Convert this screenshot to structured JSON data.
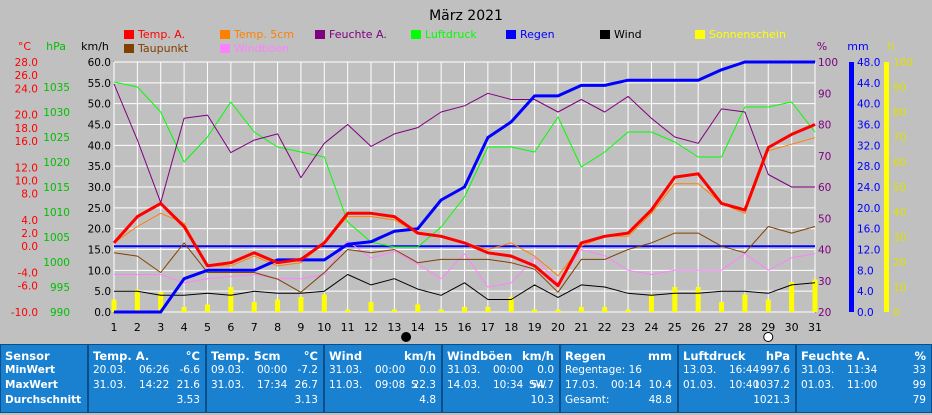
{
  "chart_data": {
    "type": "line",
    "title": "März 2021",
    "x": [
      1,
      2,
      3,
      4,
      5,
      6,
      7,
      8,
      9,
      10,
      11,
      12,
      13,
      14,
      15,
      16,
      17,
      18,
      19,
      20,
      21,
      22,
      23,
      24,
      25,
      26,
      27,
      28,
      29,
      30,
      31
    ],
    "axes": {
      "temp_c": {
        "label": "°C",
        "ticks": [
          "28.0",
          "26.0",
          "24.0",
          "20.0",
          "18.0",
          "16.0",
          "12.0",
          "10.0",
          "8.0",
          "4.0",
          "2.0",
          "0.0",
          "-4.0",
          "-6.0",
          "-10.0"
        ],
        "ylim": [
          -10,
          28
        ],
        "color": "#ff0000"
      },
      "hpa": {
        "label": "hPa",
        "ticks": [
          "1035",
          "1030",
          "1025",
          "1020",
          "1015",
          "1010",
          "1005",
          "1000",
          "995",
          "990"
        ],
        "ylim": [
          990,
          1040
        ],
        "color": "#00c000"
      },
      "kmh": {
        "label": "km/h",
        "ticks": [
          "60.0",
          "55.0",
          "50.0",
          "45.0",
          "40.0",
          "35.0",
          "30.0",
          "25.0",
          "20.0",
          "15.0",
          "10.0",
          "5.0",
          "0.0"
        ],
        "ylim": [
          0,
          60
        ],
        "color": "#000000"
      },
      "percent": {
        "label": "%",
        "ticks": [
          "100",
          "90",
          "80",
          "70",
          "60",
          "50",
          "40",
          "30",
          "20"
        ],
        "ylim": [
          20,
          100
        ],
        "color": "#800080"
      },
      "mm": {
        "label": "mm",
        "ticks": [
          "48.0",
          "44.0",
          "40.0",
          "36.0",
          "32.0",
          "28.0",
          "24.0",
          "20.0",
          "16.0",
          "12.0",
          "8.0",
          "4.0",
          "0.0"
        ],
        "ylim": [
          0,
          48
        ],
        "color": "#0000ff"
      },
      "h": {
        "label": "h",
        "ticks": [
          "100",
          "90",
          "80",
          "70",
          "60",
          "50",
          "40",
          "30",
          "20",
          "10",
          "0"
        ],
        "ylim": [
          0,
          100
        ],
        "color": "#cccc00"
      }
    },
    "legend": [
      {
        "name": "Temp. A.",
        "color": "#ff0000"
      },
      {
        "name": "Temp. 5cm",
        "color": "#ff8000"
      },
      {
        "name": "Feuchte A.",
        "color": "#800080"
      },
      {
        "name": "Luftdruck",
        "color": "#00ff00"
      },
      {
        "name": "Regen",
        "color": "#0000ff"
      },
      {
        "name": "Wind",
        "color": "#000000"
      },
      {
        "name": "Sonnenschein",
        "color": "#ffff00"
      },
      {
        "name": "Taupunkt",
        "color": "#804000"
      },
      {
        "name": "Windböen",
        "color": "#ff80ff"
      }
    ],
    "series": [
      {
        "name": "Temp. A.",
        "axis": "temp_c",
        "color": "#ff0000",
        "width": 3,
        "values": [
          0.5,
          4.5,
          6.5,
          3.0,
          -3.0,
          -2.5,
          -1.0,
          -2.5,
          -2.0,
          0.5,
          5.0,
          5.0,
          4.5,
          2.0,
          1.5,
          0.5,
          -1.0,
          -1.5,
          -3.0,
          -6.0,
          0.5,
          1.5,
          2.0,
          5.5,
          10.5,
          11.0,
          6.5,
          5.5,
          15.0,
          17.0,
          18.5
        ]
      },
      {
        "name": "Temp. 5cm",
        "axis": "temp_c",
        "color": "#ff8000",
        "width": 1,
        "values": [
          0.5,
          3.0,
          5.0,
          3.5,
          -3.0,
          -3.0,
          -1.5,
          -3.0,
          -2.5,
          0.5,
          4.5,
          4.5,
          4.0,
          2.0,
          1.5,
          0.5,
          -0.5,
          0.5,
          -1.5,
          -4.5,
          0.0,
          1.5,
          1.5,
          5.0,
          9.5,
          9.5,
          6.5,
          5.0,
          14.5,
          15.5,
          16.5
        ]
      },
      {
        "name": "Taupunkt",
        "axis": "temp_c",
        "color": "#804000",
        "width": 1,
        "values": [
          -1.0,
          -1.5,
          -4.0,
          0.5,
          -4.0,
          -4.0,
          -4.0,
          -5.0,
          -7.0,
          -4.0,
          -0.5,
          -1.0,
          -0.5,
          -2.5,
          -2.0,
          -2.0,
          -2.0,
          -2.5,
          -3.5,
          -7.0,
          -2.0,
          -2.0,
          -0.5,
          0.5,
          2.0,
          2.0,
          0.0,
          -1.0,
          3.0,
          2.0,
          3.0
        ]
      },
      {
        "name": "Feuchte A.",
        "axis": "percent",
        "color": "#800080",
        "width": 1,
        "values": [
          93,
          75,
          55,
          82,
          83,
          71,
          75,
          77,
          63,
          74,
          80,
          73,
          77,
          79,
          84,
          86,
          90,
          88,
          88,
          84,
          88,
          84,
          89,
          82,
          76,
          74,
          85,
          84,
          64,
          60,
          60
        ]
      },
      {
        "name": "Luftdruck",
        "axis": "hpa",
        "color": "#00ff00",
        "width": 1,
        "values": [
          1036,
          1035,
          1030,
          1020,
          1025,
          1032,
          1026,
          1023,
          1022,
          1021,
          1008,
          1004,
          1003,
          1003,
          1007,
          1013,
          1023,
          1023,
          1022,
          1029,
          1019,
          1022,
          1026,
          1026,
          1024,
          1021,
          1021,
          1031,
          1031,
          1032,
          1026
        ]
      },
      {
        "name": "Regen",
        "axis": "mm",
        "color": "#0000ff",
        "width": 3,
        "values": [
          0,
          0,
          0,
          6.4,
          8.0,
          8.0,
          8.0,
          10.0,
          10.0,
          10.0,
          13.0,
          13.5,
          15.5,
          16.0,
          21.5,
          24.0,
          33.5,
          36.5,
          41.5,
          41.5,
          43.5,
          43.5,
          44.5,
          44.5,
          44.5,
          44.5,
          46.5,
          48.0,
          48.0,
          48.0,
          48.0
        ]
      },
      {
        "name": "Wind",
        "axis": "kmh",
        "color": "#000000",
        "width": 1,
        "values": [
          5.0,
          5.0,
          4.0,
          4.0,
          4.5,
          4.0,
          5.0,
          4.5,
          4.5,
          5.0,
          9.0,
          6.5,
          8.0,
          5.5,
          4.0,
          7.0,
          3.0,
          3.0,
          6.5,
          3.5,
          6.5,
          6.0,
          4.5,
          4.0,
          4.5,
          4.5,
          5.0,
          5.0,
          4.5,
          6.5,
          7.0
        ]
      },
      {
        "name": "Windböen",
        "axis": "kmh",
        "color": "#ff80ff",
        "width": 1,
        "values": [
          9.0,
          9.0,
          9.0,
          7.0,
          8.0,
          8.5,
          9.0,
          8.0,
          8.0,
          9.0,
          17.0,
          13.0,
          14.5,
          11.5,
          8.0,
          14.0,
          6.0,
          7.0,
          13.0,
          7.0,
          15.0,
          13.5,
          10.0,
          9.0,
          10.0,
          10.0,
          10.0,
          14.0,
          10.0,
          13.0,
          14.0
        ]
      },
      {
        "name": "Sonnenschein",
        "axis": "h",
        "type": "bar",
        "color": "#ffff00",
        "values": [
          5,
          9,
          8,
          2,
          3,
          10,
          4,
          5,
          6,
          7,
          1,
          4,
          1,
          3,
          1,
          2,
          2,
          6,
          1,
          1,
          2,
          2,
          1,
          7,
          10,
          10,
          4,
          7,
          5,
          12,
          13
        ]
      }
    ],
    "reference_line": {
      "axis": "temp_c",
      "value": 0,
      "color": "#0000ff"
    },
    "x_markers": [
      {
        "x": 13.5,
        "kind": "new-moon"
      },
      {
        "x": 29,
        "kind": "full-moon"
      }
    ]
  },
  "table": [
    {
      "title": "Sensor",
      "unit": "",
      "rows": [
        "MinWert",
        "MaxWert",
        "Durchschnitt"
      ]
    },
    {
      "title": "Temp. A.",
      "unit": "°C",
      "rows": [
        {
          "d": "20.03.",
          "t": "06:26",
          "v": "-6.6"
        },
        {
          "d": "31.03.",
          "t": "14:22",
          "v": "21.6"
        },
        {
          "v": "3.53"
        }
      ]
    },
    {
      "title": "Temp. 5cm",
      "unit": "°C",
      "rows": [
        {
          "d": "09.03.",
          "t": "00:00",
          "v": "-7.2"
        },
        {
          "d": "31.03.",
          "t": "17:34",
          "v": "26.7"
        },
        {
          "v": "3.13"
        }
      ]
    },
    {
      "title": "Wind",
      "unit": "km/h",
      "rows": [
        {
          "d": "31.03.",
          "t": "00:00",
          "v": "0.0"
        },
        {
          "d": "11.03.",
          "t": "09:08",
          "x": "S",
          "v": "22.3"
        },
        {
          "v": "4.8"
        }
      ]
    },
    {
      "title": "Windböen",
      "unit": "km/h",
      "rows": [
        {
          "d": "31.03.",
          "t": "00:00",
          "v": "0.0"
        },
        {
          "d": "14.03.",
          "t": "10:34",
          "x": "SW",
          "v": "54.7"
        },
        {
          "v": "10.3"
        }
      ]
    },
    {
      "title": "Regen",
      "unit": "mm",
      "rows": [
        {
          "d": "Regentage: 16",
          "t": "",
          "v": ""
        },
        {
          "d": "17.03.",
          "t": "00:14",
          "v": "10.4"
        },
        {
          "d": "Gesamt:",
          "t": "",
          "v": "48.8"
        }
      ]
    },
    {
      "title": "Luftdruck",
      "unit": "hPa",
      "rows": [
        {
          "d": "13.03.",
          "t": "16:44",
          "v": "997.6"
        },
        {
          "d": "01.03.",
          "t": "10:40",
          "v": "1037.2"
        },
        {
          "v": "1021.3"
        }
      ]
    },
    {
      "title": "Feuchte A.",
      "unit": "%",
      "rows": [
        {
          "d": "31.03.",
          "t": "11:34",
          "v": "33"
        },
        {
          "d": "01.03.",
          "t": "11:00",
          "v": "99"
        },
        {
          "v": "79"
        }
      ]
    }
  ]
}
